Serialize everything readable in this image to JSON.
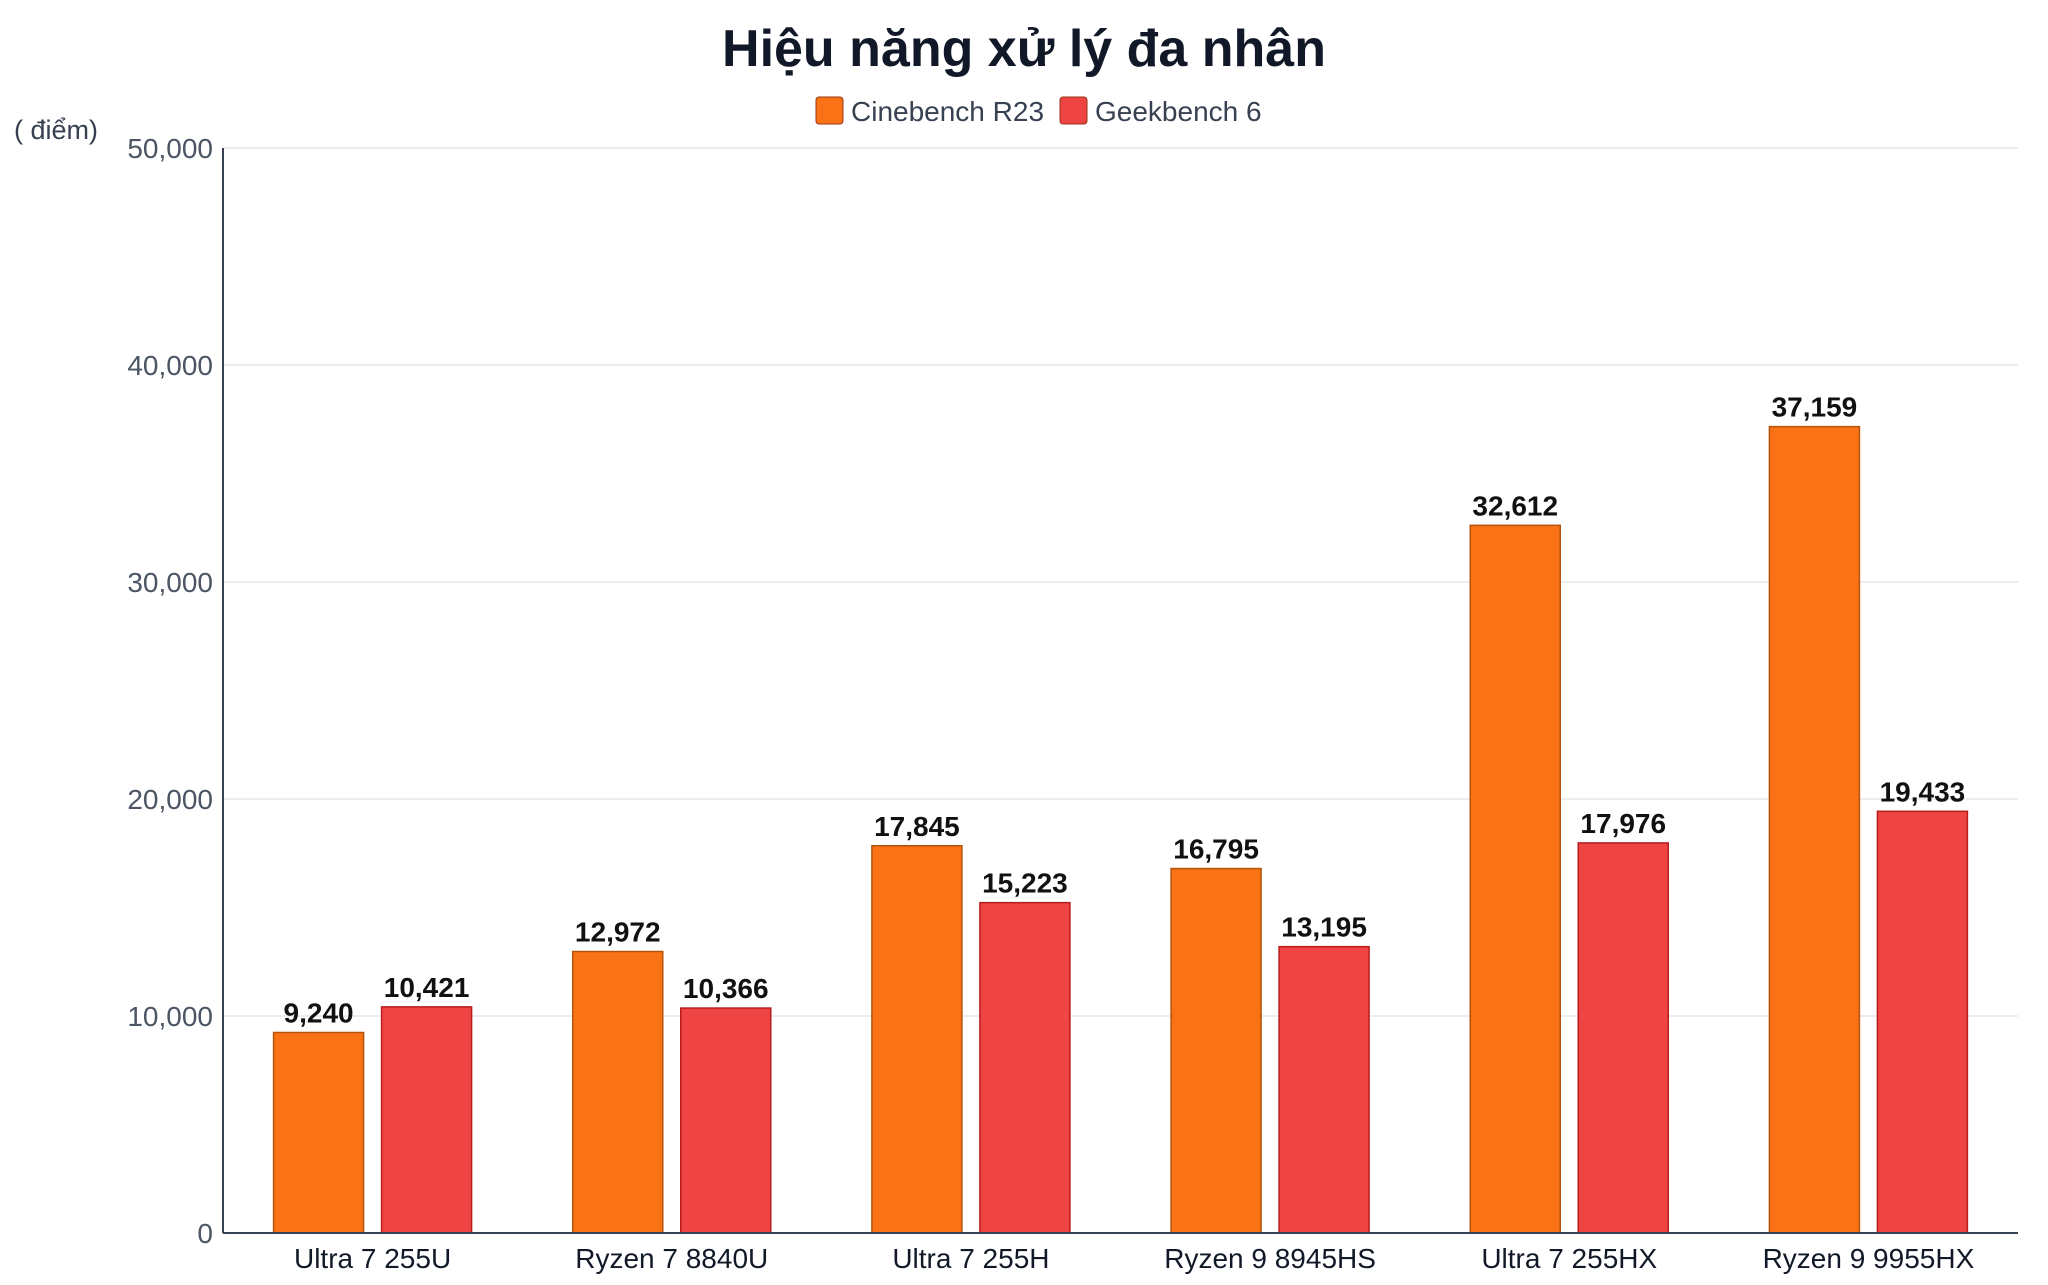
{
  "chart_data": {
    "type": "bar",
    "title": "Hiệu năng xử lý đa nhân",
    "ylabel": "( điểm)",
    "xlabel": "",
    "ylim": [
      0,
      50000
    ],
    "yticks": [
      "0",
      "10,000",
      "20,000",
      "30,000",
      "40,000",
      "50,000"
    ],
    "ytick_values": [
      0,
      10000,
      20000,
      30000,
      40000,
      50000
    ],
    "grid": true,
    "legend_position": "top-center",
    "categories": [
      "Ultra 7 255U",
      "Ryzen 7 8840U",
      "Ultra 7 255H",
      "Ryzen 9 8945HS",
      "Ultra 7 255HX",
      "Ryzen 9 9955HX"
    ],
    "series": [
      {
        "name": "Cinebench R23",
        "color": "#f97316",
        "values": [
          9240,
          12972,
          17845,
          16795,
          32612,
          37159
        ],
        "labels": [
          "9,240",
          "12,972",
          "17,845",
          "16,795",
          "32,612",
          "37,159"
        ]
      },
      {
        "name": "Geekbench 6",
        "color": "#ef4444",
        "values": [
          10421,
          10366,
          15223,
          13195,
          17976,
          19433
        ],
        "labels": [
          "10,421",
          "10,366",
          "15,223",
          "13,195",
          "17,976",
          "19,433"
        ]
      }
    ]
  }
}
